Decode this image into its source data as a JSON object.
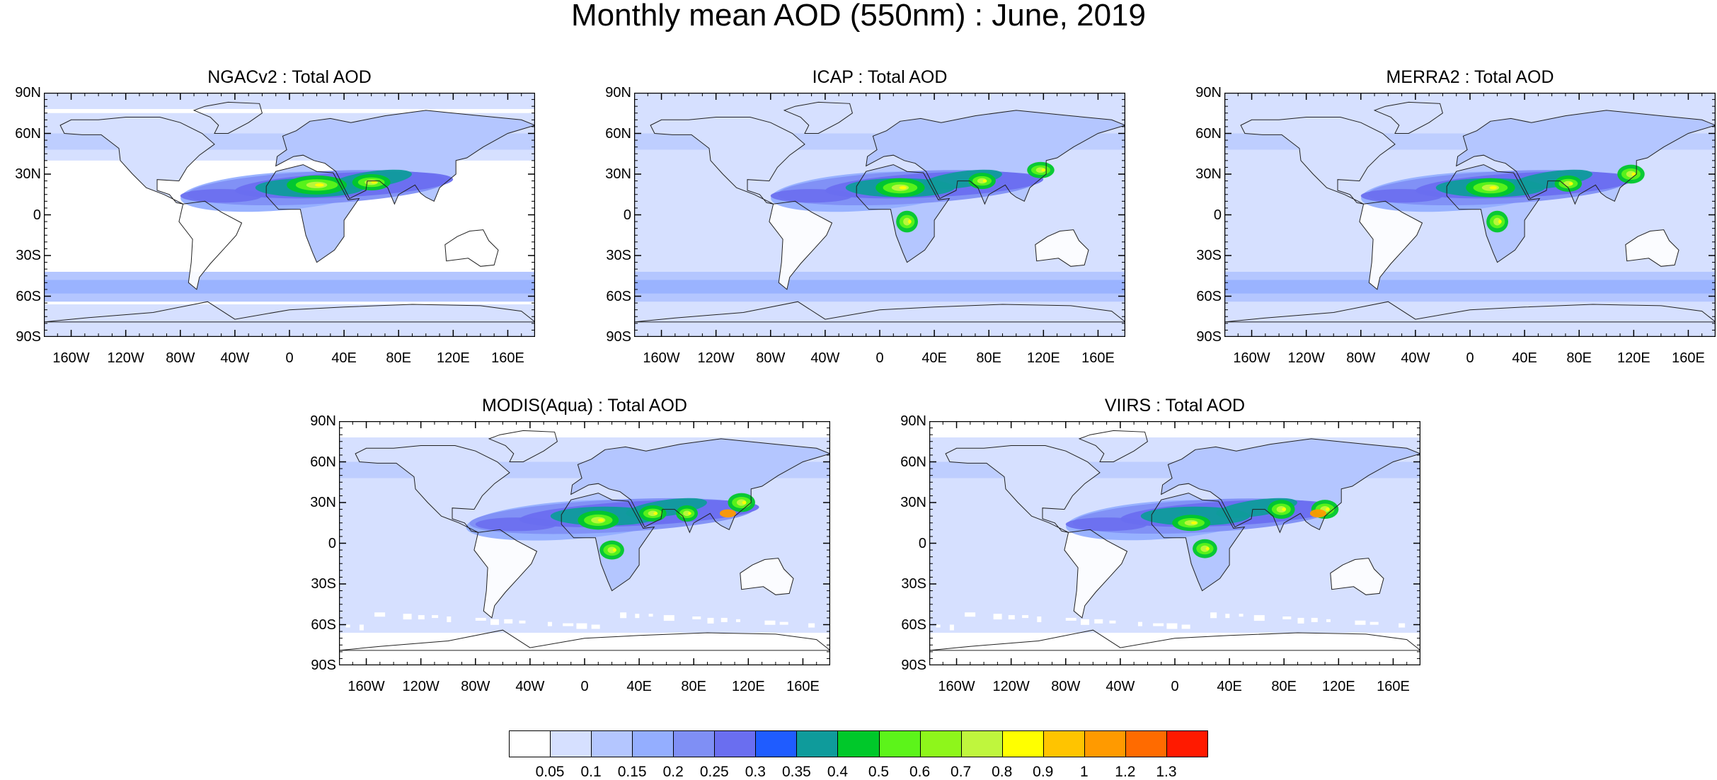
{
  "figure": {
    "title": "Monthly mean AOD (550nm) : June, 2019"
  },
  "axes": {
    "lat_labels": [
      "90N",
      "60N",
      "30N",
      "0",
      "30S",
      "60S",
      "90S"
    ],
    "lon_labels": [
      "160W",
      "120W",
      "80W",
      "40W",
      "0",
      "40E",
      "80E",
      "120E",
      "160E"
    ]
  },
  "panels": [
    {
      "title": "NGACv2 : Total AOD",
      "dataset": "NGACv2"
    },
    {
      "title": "ICAP : Total AOD",
      "dataset": "ICAP"
    },
    {
      "title": "MERRA2 : Total AOD",
      "dataset": "MERRA2"
    },
    {
      "title": "MODIS(Aqua) : Total AOD",
      "dataset": "MODIS"
    },
    {
      "title": "VIIRS : Total AOD",
      "dataset": "VIIRS"
    }
  ],
  "colorbar": {
    "labels": [
      "0.05",
      "0.1",
      "0.15",
      "0.2",
      "0.25",
      "0.3",
      "0.35",
      "0.4",
      "0.5",
      "0.6",
      "0.7",
      "0.8",
      "0.9",
      "1",
      "1.2",
      "1.3"
    ],
    "colors": [
      "#ffffff",
      "#d6e0ff",
      "#b4c6ff",
      "#94aeff",
      "#7f8ff5",
      "#6a6ef0",
      "#1f5cff",
      "#0f9b9b",
      "#00c82a",
      "#5cf41a",
      "#8ef61b",
      "#bff63d",
      "#ffff00",
      "#ffc400",
      "#ff9a00",
      "#ff6b00",
      "#ff1a00"
    ]
  },
  "chart_data": [
    {
      "type": "heatmap",
      "title": "NGACv2 : Total AOD",
      "variable": "Total AOD",
      "units": "",
      "month": "June, 2019",
      "xlim": [
        -180,
        180
      ],
      "ylim": [
        -90,
        90
      ],
      "high_regions": [
        "North Africa / Sahara",
        "Arabian Peninsula",
        "South Asia"
      ],
      "max_bin": "0.9"
    },
    {
      "type": "heatmap",
      "title": "ICAP : Total AOD",
      "variable": "Total AOD",
      "month": "June, 2019",
      "xlim": [
        -180,
        180
      ],
      "ylim": [
        -90,
        90
      ],
      "high_regions": [
        "North Africa / Sahara",
        "Central Africa",
        "South Asia",
        "East China"
      ],
      "max_bin": "0.9"
    },
    {
      "type": "heatmap",
      "title": "MERRA2 : Total AOD",
      "variable": "Total AOD",
      "month": "June, 2019",
      "xlim": [
        -180,
        180
      ],
      "ylim": [
        -90,
        90
      ],
      "high_regions": [
        "North Africa / Sahara",
        "Central Africa",
        "South Asia",
        "East China"
      ],
      "max_bin": "0.9"
    },
    {
      "type": "heatmap",
      "title": "MODIS(Aqua) : Total AOD",
      "variable": "Total AOD",
      "month": "June, 2019",
      "xlim": [
        -180,
        180
      ],
      "ylim": [
        -90,
        90
      ],
      "high_regions": [
        "North Africa / Sahara",
        "Central Africa",
        "Arabian Peninsula",
        "South Asia",
        "East China"
      ],
      "max_bin": "1.3"
    },
    {
      "type": "heatmap",
      "title": "VIIRS : Total AOD",
      "variable": "Total AOD",
      "month": "June, 2019",
      "xlim": [
        -180,
        180
      ],
      "ylim": [
        -90,
        90
      ],
      "high_regions": [
        "North Africa / Sahara",
        "Central Africa",
        "South Asia",
        "East China"
      ],
      "max_bin": "1.2"
    }
  ]
}
